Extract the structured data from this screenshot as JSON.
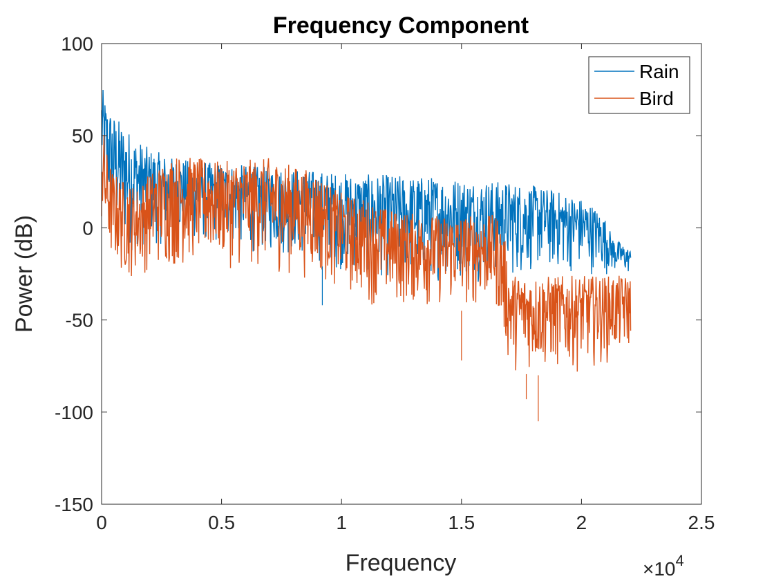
{
  "chart_data": {
    "type": "line",
    "title": "Frequency Component",
    "xlabel": "Frequency",
    "ylabel": "Power (dB)",
    "x_exponent_label": "×10",
    "x_exponent_power": "4",
    "xlim": [
      0,
      25000
    ],
    "ylim": [
      -150,
      100
    ],
    "xticks": [
      0,
      5000,
      10000,
      15000,
      20000,
      25000
    ],
    "xtick_labels": [
      "0",
      "0.5",
      "1",
      "1.5",
      "2",
      "2.5"
    ],
    "yticks": [
      -150,
      -100,
      -50,
      0,
      50,
      100
    ],
    "ytick_labels": [
      "-150",
      "-100",
      "-50",
      "0",
      "50",
      "100"
    ],
    "grid": false,
    "legend_position": "top-right",
    "series": [
      {
        "name": "Rain",
        "color": "#0072BD",
        "x": [
          0,
          200,
          500,
          1000,
          1500,
          2000,
          3000,
          4000,
          5000,
          6000,
          7000,
          8000,
          9000,
          10000,
          11000,
          12000,
          13000,
          14000,
          15000,
          16000,
          17000,
          18000,
          19000,
          20000,
          20500,
          21000,
          21300,
          22050
        ],
        "upper": [
          78,
          68,
          62,
          55,
          48,
          43,
          38,
          36,
          35,
          34,
          33,
          32,
          31,
          30,
          29,
          29,
          28,
          28,
          27,
          26,
          25,
          23,
          20,
          16,
          12,
          5,
          -5,
          -12
        ],
        "lower": [
          15,
          5,
          -10,
          -15,
          -15,
          -12,
          -10,
          -10,
          -12,
          -14,
          -16,
          -18,
          -20,
          -25,
          -28,
          -30,
          -30,
          -30,
          -30,
          -30,
          -30,
          -26,
          -26,
          -26,
          -26,
          -26,
          -26,
          -26
        ]
      },
      {
        "name": "Bird",
        "color": "#D95319",
        "x": [
          0,
          200,
          500,
          1000,
          1500,
          2000,
          3000,
          4000,
          5000,
          6000,
          7000,
          8000,
          9000,
          9800,
          10500,
          11000,
          12000,
          13000,
          14000,
          15000,
          16000,
          16500,
          16800,
          17000,
          18000,
          19000,
          20000,
          21000,
          22050
        ],
        "upper": [
          62,
          42,
          30,
          25,
          22,
          30,
          40,
          38,
          36,
          37,
          38,
          34,
          30,
          20,
          17,
          16,
          10,
          8,
          7,
          7,
          7,
          7,
          -5,
          -25,
          -26,
          -26,
          -26,
          -26,
          -26
        ],
        "lower": [
          -10,
          -20,
          -25,
          -30,
          -28,
          -25,
          -25,
          -22,
          -22,
          -25,
          -25,
          -28,
          -30,
          -35,
          -40,
          -42,
          -45,
          -45,
          -45,
          -45,
          -45,
          -48,
          -70,
          -78,
          -80,
          -80,
          -78,
          -75,
          -70
        ]
      }
    ],
    "annotations": [
      {
        "series": "Rain",
        "x": 9200,
        "y": -42
      },
      {
        "series": "Bird",
        "x": 15000,
        "y": -72
      },
      {
        "series": "Bird",
        "x": 18200,
        "y": -105
      },
      {
        "series": "Bird",
        "x": 17700,
        "y": -93
      }
    ]
  }
}
